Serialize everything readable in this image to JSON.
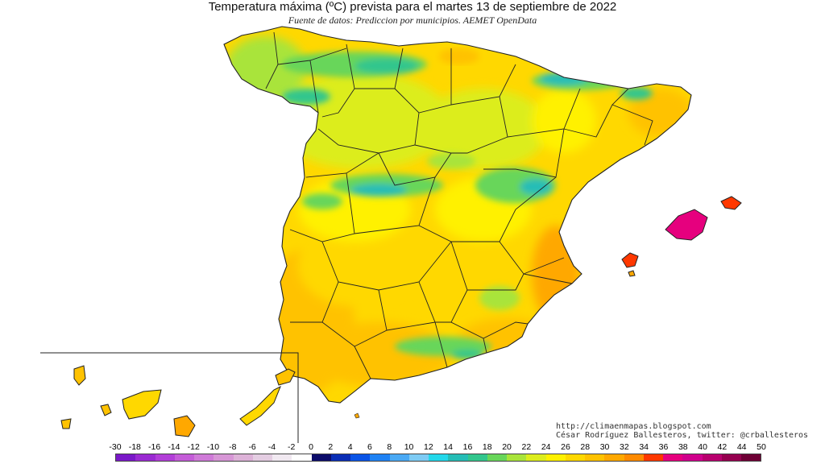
{
  "title": "Temperatura máxima (ºC) prevista para el martes 13 de septiembre de 2022",
  "subtitle": "Fuente de datos: Prediccion por municipios. AEMET OpenData",
  "credits": {
    "line1": "http://climaenmapas.blogspot.com",
    "line2": "César Rodríguez Ballesteros, twitter: @crballesteros"
  },
  "legend": {
    "ticks": [
      "-30",
      "-18",
      "-16",
      "-14",
      "-12",
      "-10",
      "-8",
      "-6",
      "-4",
      "-2",
      "0",
      "2",
      "4",
      "6",
      "8",
      "10",
      "12",
      "14",
      "16",
      "18",
      "20",
      "22",
      "24",
      "26",
      "28",
      "30",
      "32",
      "34",
      "36",
      "38",
      "40",
      "42",
      "44",
      "50"
    ],
    "colors": [
      "#7a18c8",
      "#9a2ad2",
      "#b23ed8",
      "#c45cd8",
      "#cf7ad8",
      "#d796d6",
      "#ddb2d8",
      "#e4cde2",
      "#f1e9f1",
      "#ffffff",
      "#0c0c6a",
      "#0a2db5",
      "#0a54e6",
      "#1f82f4",
      "#4aa9f4",
      "#7ecbf4",
      "#23d8ea",
      "#25bdb6",
      "#32c68d",
      "#68d65a",
      "#a9e43a",
      "#dced1d",
      "#fff100",
      "#ffd800",
      "#ffc200",
      "#ffa800",
      "#ff8a00",
      "#ff3800",
      "#e6007e",
      "#d0008c",
      "#b8006e",
      "#95004f",
      "#6e0035"
    ],
    "highlight_icon": "yellow-triangle-marker"
  },
  "map": {
    "region": "Spain (peninsula, Balearic Islands, Canary Islands inset)",
    "field": "maximum temperature forecast",
    "dominant_ranges": {
      "north_mountains": "16-20",
      "central_meseta": "22-26",
      "south_and_coast": "26-30",
      "balearics": "32-36",
      "canaries": "26-30"
    }
  }
}
